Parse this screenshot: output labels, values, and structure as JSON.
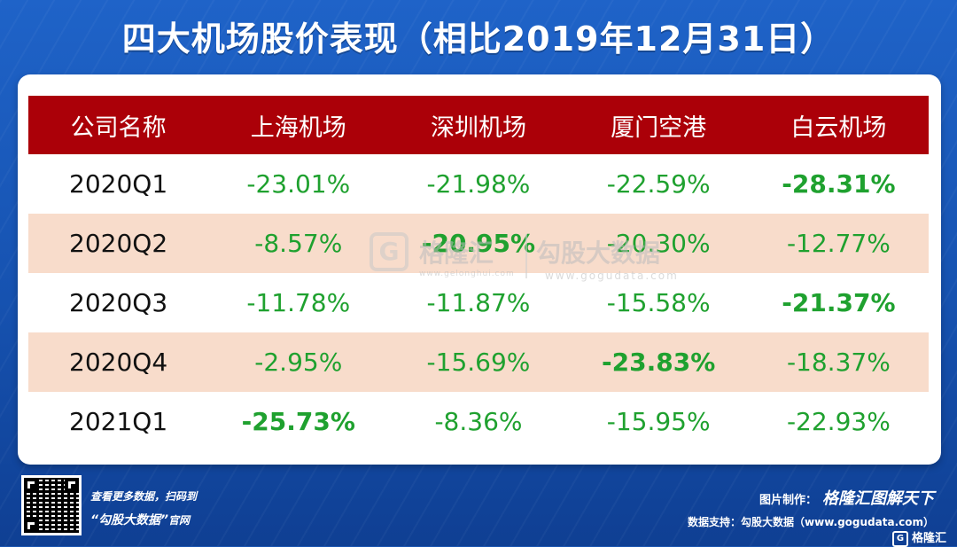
{
  "title": "四大机场股价表现（相比2019年12月31日）",
  "table": {
    "headers": [
      "公司名称",
      "上海机场",
      "深圳机场",
      "厦门空港",
      "白云机场"
    ],
    "rows": [
      {
        "period": "2020Q1",
        "values": [
          "-23.01%",
          "-21.98%",
          "-22.59%",
          "-28.31%"
        ],
        "bold": [
          false,
          false,
          false,
          true
        ]
      },
      {
        "period": "2020Q2",
        "values": [
          "-8.57%",
          "-20.95%",
          "-20.30%",
          "-12.77%"
        ],
        "bold": [
          false,
          true,
          false,
          false
        ]
      },
      {
        "period": "2020Q3",
        "values": [
          "-11.78%",
          "-11.87%",
          "-15.58%",
          "-21.37%"
        ],
        "bold": [
          false,
          false,
          false,
          true
        ]
      },
      {
        "period": "2020Q4",
        "values": [
          "-2.95%",
          "-15.69%",
          "-23.83%",
          "-18.37%"
        ],
        "bold": [
          false,
          false,
          true,
          false
        ]
      },
      {
        "period": "2021Q1",
        "values": [
          "-25.73%",
          "-8.36%",
          "-15.95%",
          "-22.93%"
        ],
        "bold": [
          true,
          false,
          false,
          false
        ]
      }
    ]
  },
  "watermark": {
    "logo_letter": "G",
    "name1": "格隆汇",
    "name2": "勾股大数据",
    "url1": "www.gelonghui.com",
    "url2": "www.gogudata.com"
  },
  "footer": {
    "scan_line1": "查看更多数据，扫码到",
    "scan_line2_quote": "“勾股大数据”",
    "scan_line2_suffix": "官网",
    "credit_label": "图片制作：",
    "credit_brand": "格隆汇图解天下",
    "support": "数据支持：勾股大数据（www.gogudata.com）",
    "corner_logo_letter": "G",
    "corner_logo_text": "格隆汇"
  },
  "colors": {
    "header_bg": "#ab0008",
    "value_green": "#1fa12f",
    "alt_row": "#f8dccb",
    "background_blue": "#1a55b0"
  }
}
